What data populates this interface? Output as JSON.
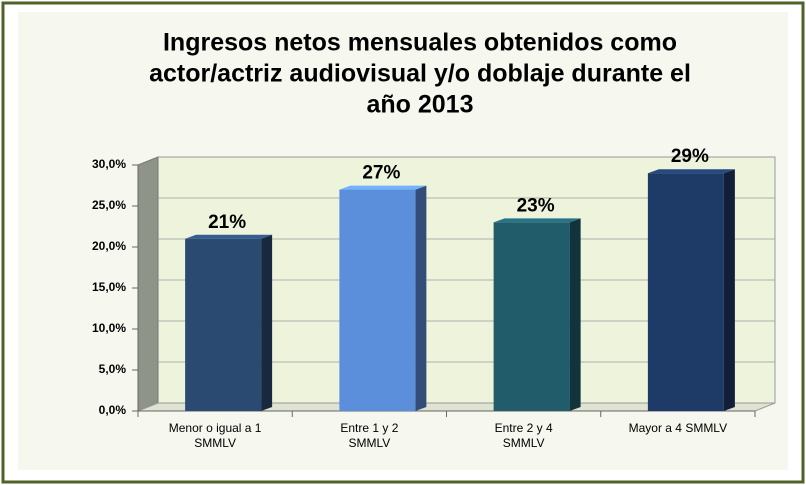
{
  "chart_data": {
    "type": "bar3d",
    "title": [
      "Ingresos netos mensuales obtenidos como",
      "actor/actriz audiovisual y/o doblaje durante el",
      "año 2013"
    ],
    "categories": [
      [
        "Menor o igual a 1",
        "SMMLV"
      ],
      [
        "Entre 1 y 2",
        "SMMLV"
      ],
      [
        "Entre 2 y 4",
        "SMMLV"
      ],
      [
        "Mayor a 4 SMMLV"
      ]
    ],
    "values": [
      21,
      27,
      23,
      29
    ],
    "value_labels": [
      "21%",
      "27%",
      "23%",
      "29%"
    ],
    "colors": [
      "#2b4a72",
      "#5b8edb",
      "#215c6b",
      "#1e3a66"
    ],
    "ylim": [
      0,
      30
    ],
    "yticks": [
      {
        "value": 0,
        "label": "0,0%"
      },
      {
        "value": 5,
        "label": "5,0%"
      },
      {
        "value": 10,
        "label": "10,0%"
      },
      {
        "value": 15,
        "label": "15,0%"
      },
      {
        "value": 20,
        "label": "20,0%"
      },
      {
        "value": 25,
        "label": "25,0%"
      },
      {
        "value": 30,
        "label": "30,0%"
      }
    ],
    "grid": true
  }
}
